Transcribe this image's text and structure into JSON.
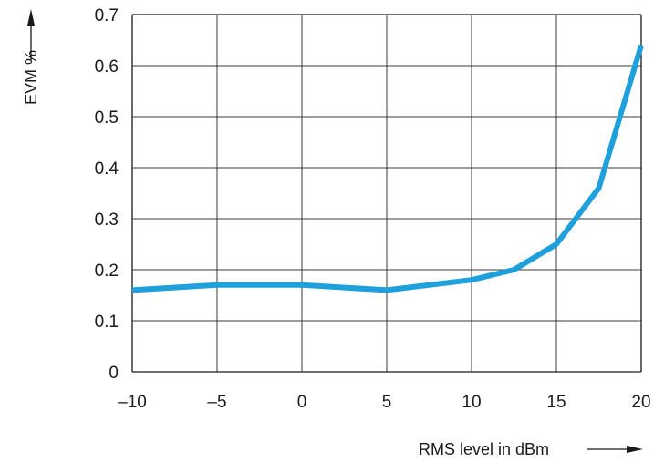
{
  "chart_data": {
    "type": "line",
    "xlabel": "RMS level in dBm",
    "ylabel": "EVM %",
    "xlim": [
      -10,
      20
    ],
    "ylim": [
      0,
      0.7
    ],
    "x_ticks": [
      -10,
      -5,
      0,
      5,
      10,
      15,
      20
    ],
    "y_ticks": [
      0,
      0.1,
      0.2,
      0.3,
      0.4,
      0.5,
      0.6,
      0.7
    ],
    "x_tick_labels": [
      "–10",
      "–5",
      "0",
      "5",
      "10",
      "15",
      "20"
    ],
    "y_tick_labels": [
      "0",
      "0.1",
      "0.2",
      "0.3",
      "0.4",
      "0.5",
      "0.6",
      "0.7"
    ],
    "grid": true,
    "series": [
      {
        "color": "#1ea0dc",
        "x": [
          -10,
          -5,
          0,
          5,
          10,
          12.5,
          15,
          17.5,
          20
        ],
        "y": [
          0.16,
          0.17,
          0.17,
          0.16,
          0.18,
          0.2,
          0.25,
          0.36,
          0.64
        ]
      }
    ]
  }
}
